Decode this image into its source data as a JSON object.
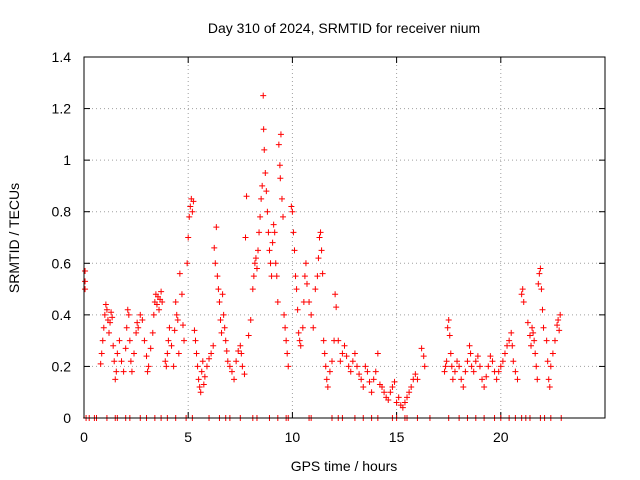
{
  "chart_data": {
    "type": "scatter",
    "title": "Day 310 of 2024, SRMTID for receiver nium",
    "xlabel": "GPS time / hours",
    "ylabel": "SRMTID / TECUs",
    "xlim": [
      0,
      25
    ],
    "ylim": [
      0,
      1.4
    ],
    "xticks": [
      0,
      5,
      10,
      15,
      20
    ],
    "xtick_labels": [
      "0",
      "5",
      "10",
      "15",
      "20"
    ],
    "yticks": [
      0,
      0.2,
      0.4,
      0.6,
      0.8,
      1.0,
      1.2,
      1.4
    ],
    "ytick_labels": [
      "0",
      "0.2",
      "0.4",
      "0.6",
      "0.8",
      "1",
      "1.2",
      "1.4"
    ],
    "grid": true,
    "marker": "+",
    "color": "#ff0000",
    "series": [
      {
        "name": "SRMTID",
        "points": [
          [
            0.05,
            0.57
          ],
          [
            0.05,
            0.5
          ],
          [
            0.05,
            0.53
          ],
          [
            0.8,
            0.21
          ],
          [
            0.85,
            0.25
          ],
          [
            0.9,
            0.3
          ],
          [
            0.95,
            0.35
          ],
          [
            1.0,
            0.4
          ],
          [
            1.05,
            0.44
          ],
          [
            1.1,
            0.42
          ],
          [
            1.15,
            0.38
          ],
          [
            1.2,
            0.33
          ],
          [
            1.25,
            0.37
          ],
          [
            1.3,
            0.41
          ],
          [
            1.35,
            0.39
          ],
          [
            1.4,
            0.28
          ],
          [
            1.45,
            0.22
          ],
          [
            1.5,
            0.15
          ],
          [
            1.55,
            0.18
          ],
          [
            1.6,
            0.25
          ],
          [
            1.7,
            0.3
          ],
          [
            1.8,
            0.22
          ],
          [
            1.9,
            0.18
          ],
          [
            2.0,
            0.27
          ],
          [
            2.05,
            0.35
          ],
          [
            2.1,
            0.42
          ],
          [
            2.15,
            0.4
          ],
          [
            2.2,
            0.3
          ],
          [
            2.25,
            0.22
          ],
          [
            2.3,
            0.18
          ],
          [
            2.4,
            0.25
          ],
          [
            2.5,
            0.33
          ],
          [
            2.55,
            0.37
          ],
          [
            2.6,
            0.35
          ],
          [
            2.7,
            0.4
          ],
          [
            2.8,
            0.38
          ],
          [
            2.9,
            0.3
          ],
          [
            3.0,
            0.24
          ],
          [
            3.05,
            0.18
          ],
          [
            3.1,
            0.2
          ],
          [
            3.2,
            0.27
          ],
          [
            3.3,
            0.33
          ],
          [
            3.35,
            0.4
          ],
          [
            3.4,
            0.45
          ],
          [
            3.45,
            0.48
          ],
          [
            3.5,
            0.44
          ],
          [
            3.55,
            0.47
          ],
          [
            3.6,
            0.42
          ],
          [
            3.65,
            0.46
          ],
          [
            3.7,
            0.49
          ],
          [
            3.75,
            0.45
          ],
          [
            3.9,
            0.22
          ],
          [
            3.95,
            0.2
          ],
          [
            4.0,
            0.25
          ],
          [
            4.05,
            0.3
          ],
          [
            4.1,
            0.35
          ],
          [
            4.2,
            0.28
          ],
          [
            4.3,
            0.2
          ],
          [
            4.35,
            0.34
          ],
          [
            4.4,
            0.45
          ],
          [
            4.45,
            0.4
          ],
          [
            4.5,
            0.38
          ],
          [
            4.55,
            0.25
          ],
          [
            4.6,
            0.56
          ],
          [
            4.7,
            0.48
          ],
          [
            4.75,
            0.36
          ],
          [
            4.8,
            0.3
          ],
          [
            4.95,
            0.6
          ],
          [
            5.0,
            0.7
          ],
          [
            5.05,
            0.78
          ],
          [
            5.1,
            0.82
          ],
          [
            5.15,
            0.85
          ],
          [
            5.2,
            0.8
          ],
          [
            5.25,
            0.84
          ],
          [
            5.3,
            0.34
          ],
          [
            5.35,
            0.3
          ],
          [
            5.4,
            0.25
          ],
          [
            5.45,
            0.2
          ],
          [
            5.5,
            0.15
          ],
          [
            5.55,
            0.12
          ],
          [
            5.6,
            0.1
          ],
          [
            5.65,
            0.18
          ],
          [
            5.7,
            0.22
          ],
          [
            5.75,
            0.13
          ],
          [
            5.8,
            0.16
          ],
          [
            5.9,
            0.2
          ],
          [
            6.0,
            0.23
          ],
          [
            6.1,
            0.25
          ],
          [
            6.2,
            0.28
          ],
          [
            6.25,
            0.66
          ],
          [
            6.3,
            0.6
          ],
          [
            6.35,
            0.74
          ],
          [
            6.4,
            0.55
          ],
          [
            6.45,
            0.5
          ],
          [
            6.5,
            0.45
          ],
          [
            6.55,
            0.38
          ],
          [
            6.6,
            0.33
          ],
          [
            6.65,
            0.48
          ],
          [
            6.7,
            0.4
          ],
          [
            6.75,
            0.35
          ],
          [
            6.8,
            0.3
          ],
          [
            6.85,
            0.26
          ],
          [
            6.9,
            0.22
          ],
          [
            7.0,
            0.2
          ],
          [
            7.1,
            0.18
          ],
          [
            7.2,
            0.15
          ],
          [
            7.3,
            0.22
          ],
          [
            7.4,
            0.26
          ],
          [
            7.5,
            0.28
          ],
          [
            7.55,
            0.25
          ],
          [
            7.6,
            0.2
          ],
          [
            7.7,
            0.17
          ],
          [
            7.75,
            0.7
          ],
          [
            7.8,
            0.86
          ],
          [
            7.9,
            0.32
          ],
          [
            8.0,
            0.38
          ],
          [
            8.1,
            0.5
          ],
          [
            8.15,
            0.55
          ],
          [
            8.2,
            0.6
          ],
          [
            8.25,
            0.62
          ],
          [
            8.3,
            0.58
          ],
          [
            8.35,
            0.65
          ],
          [
            8.4,
            0.72
          ],
          [
            8.45,
            0.78
          ],
          [
            8.5,
            0.85
          ],
          [
            8.55,
            0.9
          ],
          [
            8.6,
            1.25
          ],
          [
            8.62,
            1.12
          ],
          [
            8.65,
            1.04
          ],
          [
            8.7,
            0.95
          ],
          [
            8.75,
            0.88
          ],
          [
            8.8,
            0.8
          ],
          [
            8.85,
            0.72
          ],
          [
            8.9,
            0.65
          ],
          [
            8.95,
            0.6
          ],
          [
            9.0,
            0.55
          ],
          [
            9.05,
            0.68
          ],
          [
            9.1,
            0.75
          ],
          [
            9.15,
            0.72
          ],
          [
            9.2,
            0.6
          ],
          [
            9.25,
            0.55
          ],
          [
            9.3,
            0.45
          ],
          [
            9.35,
            1.06
          ],
          [
            9.4,
            0.98
          ],
          [
            9.42,
            0.93
          ],
          [
            9.45,
            1.1
          ],
          [
            9.5,
            0.85
          ],
          [
            9.55,
            0.78
          ],
          [
            9.6,
            0.4
          ],
          [
            9.65,
            0.35
          ],
          [
            9.7,
            0.3
          ],
          [
            9.75,
            0.25
          ],
          [
            9.8,
            0.2
          ],
          [
            9.95,
            0.82
          ],
          [
            10.0,
            0.8
          ],
          [
            10.05,
            0.72
          ],
          [
            10.1,
            0.65
          ],
          [
            10.15,
            0.55
          ],
          [
            10.2,
            0.5
          ],
          [
            10.25,
            0.42
          ],
          [
            10.3,
            0.33
          ],
          [
            10.35,
            0.3
          ],
          [
            10.4,
            0.28
          ],
          [
            10.5,
            0.35
          ],
          [
            10.55,
            0.45
          ],
          [
            10.6,
            0.55
          ],
          [
            10.65,
            0.6
          ],
          [
            10.7,
            0.52
          ],
          [
            10.8,
            0.45
          ],
          [
            10.9,
            0.4
          ],
          [
            11.0,
            0.35
          ],
          [
            11.1,
            0.5
          ],
          [
            11.2,
            0.55
          ],
          [
            11.25,
            0.62
          ],
          [
            11.3,
            0.7
          ],
          [
            11.35,
            0.72
          ],
          [
            11.4,
            0.65
          ],
          [
            11.45,
            0.56
          ],
          [
            11.5,
            0.3
          ],
          [
            11.55,
            0.25
          ],
          [
            11.6,
            0.2
          ],
          [
            11.65,
            0.15
          ],
          [
            11.7,
            0.12
          ],
          [
            11.8,
            0.18
          ],
          [
            11.9,
            0.22
          ],
          [
            12.0,
            0.3
          ],
          [
            12.05,
            0.48
          ],
          [
            12.1,
            0.43
          ],
          [
            12.2,
            0.3
          ],
          [
            12.3,
            0.22
          ],
          [
            12.4,
            0.25
          ],
          [
            12.5,
            0.28
          ],
          [
            12.6,
            0.24
          ],
          [
            12.7,
            0.2
          ],
          [
            12.8,
            0.18
          ],
          [
            12.9,
            0.22
          ],
          [
            13.0,
            0.25
          ],
          [
            13.1,
            0.2
          ],
          [
            13.2,
            0.17
          ],
          [
            13.3,
            0.15
          ],
          [
            13.4,
            0.12
          ],
          [
            13.5,
            0.2
          ],
          [
            13.6,
            0.18
          ],
          [
            13.7,
            0.14
          ],
          [
            13.8,
            0.1
          ],
          [
            13.9,
            0.15
          ],
          [
            14.0,
            0.18
          ],
          [
            14.1,
            0.25
          ],
          [
            14.2,
            0.13
          ],
          [
            14.3,
            0.12
          ],
          [
            14.4,
            0.1
          ],
          [
            14.5,
            0.08
          ],
          [
            14.6,
            0.07
          ],
          [
            14.7,
            0.1
          ],
          [
            14.8,
            0.12
          ],
          [
            14.9,
            0.14
          ],
          [
            15.0,
            0.06
          ],
          [
            15.1,
            0.08
          ],
          [
            15.2,
            0.05
          ],
          [
            15.3,
            0.04
          ],
          [
            15.4,
            0.06
          ],
          [
            15.5,
            0.08
          ],
          [
            15.6,
            0.1
          ],
          [
            15.7,
            0.12
          ],
          [
            15.8,
            0.15
          ],
          [
            15.9,
            0.17
          ],
          [
            16.0,
            0.15
          ],
          [
            16.2,
            0.27
          ],
          [
            16.3,
            0.24
          ],
          [
            16.35,
            0.2
          ],
          [
            17.3,
            0.18
          ],
          [
            17.35,
            0.2
          ],
          [
            17.4,
            0.22
          ],
          [
            17.45,
            0.35
          ],
          [
            17.5,
            0.38
          ],
          [
            17.55,
            0.32
          ],
          [
            17.6,
            0.25
          ],
          [
            17.65,
            0.2
          ],
          [
            17.7,
            0.15
          ],
          [
            17.8,
            0.18
          ],
          [
            17.9,
            0.22
          ],
          [
            18.0,
            0.2
          ],
          [
            18.1,
            0.15
          ],
          [
            18.2,
            0.12
          ],
          [
            18.3,
            0.18
          ],
          [
            18.4,
            0.22
          ],
          [
            18.5,
            0.28
          ],
          [
            18.55,
            0.25
          ],
          [
            18.6,
            0.2
          ],
          [
            18.7,
            0.18
          ],
          [
            18.8,
            0.22
          ],
          [
            18.9,
            0.24
          ],
          [
            19.0,
            0.2
          ],
          [
            19.1,
            0.15
          ],
          [
            19.2,
            0.12
          ],
          [
            19.3,
            0.16
          ],
          [
            19.4,
            0.2
          ],
          [
            19.5,
            0.24
          ],
          [
            19.6,
            0.22
          ],
          [
            19.7,
            0.18
          ],
          [
            19.8,
            0.15
          ],
          [
            19.9,
            0.18
          ],
          [
            20.0,
            0.2
          ],
          [
            20.1,
            0.22
          ],
          [
            20.2,
            0.25
          ],
          [
            20.3,
            0.28
          ],
          [
            20.4,
            0.3
          ],
          [
            20.5,
            0.33
          ],
          [
            20.55,
            0.28
          ],
          [
            20.6,
            0.22
          ],
          [
            20.7,
            0.18
          ],
          [
            20.8,
            0.15
          ],
          [
            21.0,
            0.48
          ],
          [
            21.05,
            0.5
          ],
          [
            21.1,
            0.45
          ],
          [
            21.3,
            0.37
          ],
          [
            21.4,
            0.32
          ],
          [
            21.45,
            0.28
          ],
          [
            21.5,
            0.35
          ],
          [
            21.55,
            0.33
          ],
          [
            21.6,
            0.3
          ],
          [
            21.65,
            0.25
          ],
          [
            21.7,
            0.2
          ],
          [
            21.75,
            0.15
          ],
          [
            21.8,
            0.52
          ],
          [
            21.85,
            0.56
          ],
          [
            21.9,
            0.58
          ],
          [
            21.95,
            0.5
          ],
          [
            22.0,
            0.42
          ],
          [
            22.05,
            0.35
          ],
          [
            22.2,
            0.3
          ],
          [
            22.25,
            0.22
          ],
          [
            22.3,
            0.15
          ],
          [
            22.35,
            0.12
          ],
          [
            22.4,
            0.2
          ],
          [
            22.5,
            0.25
          ],
          [
            22.6,
            0.3
          ],
          [
            22.7,
            0.36
          ],
          [
            22.75,
            0.38
          ],
          [
            22.8,
            0.34
          ],
          [
            22.85,
            0.4
          ]
        ],
        "zero_points_x": [
          0.1,
          0.25,
          0.5,
          0.6,
          1.1,
          1.5,
          1.6,
          2.0,
          2.2,
          2.7,
          3.0,
          3.4,
          3.7,
          4.0,
          4.4,
          4.9,
          5.2,
          6.0,
          6.5,
          6.8,
          7.0,
          7.5,
          8.1,
          8.3,
          8.9,
          9.3,
          9.7,
          9.8,
          10.8,
          10.9,
          11.9,
          12.2,
          12.4,
          13.0,
          13.4,
          13.8,
          14.1,
          14.8,
          15.0,
          15.4,
          15.5,
          16.0,
          16.6,
          17.5,
          18.0,
          18.4,
          18.8,
          19.2,
          19.7,
          20.0,
          20.4,
          20.7,
          21.0,
          21.2,
          21.4,
          21.9,
          22.1,
          22.4,
          22.9
        ]
      }
    ]
  }
}
